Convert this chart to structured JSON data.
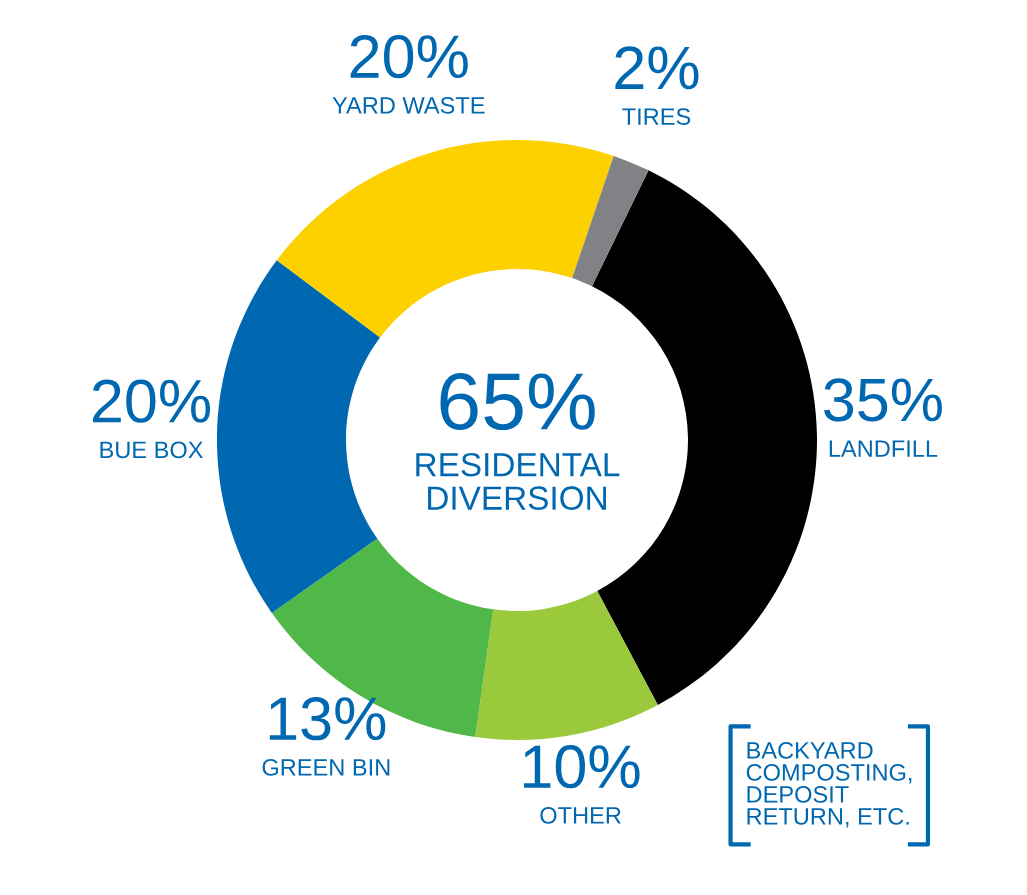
{
  "chart_data": {
    "type": "donut",
    "categories": [
      "LANDFILL",
      "OTHER",
      "GREEN BIN",
      "BUE BOX",
      "YARD WASTE",
      "TIRES"
    ],
    "values": [
      35,
      10,
      13,
      20,
      20,
      2
    ],
    "value_labels": [
      "35%",
      "10%",
      "13%",
      "20%",
      "20%",
      "2%"
    ],
    "colors": [
      "#000000",
      "#9aca3c",
      "#50b848",
      "#0067b1",
      "#fdd000",
      "#808285"
    ],
    "annotations": [
      "65%",
      "RESIDENTAL\nDIVERSION",
      "BACKYARD\nCOMPOSTING,\nDEPOSIT\nRETURN, ETC."
    ],
    "legend": false
  }
}
